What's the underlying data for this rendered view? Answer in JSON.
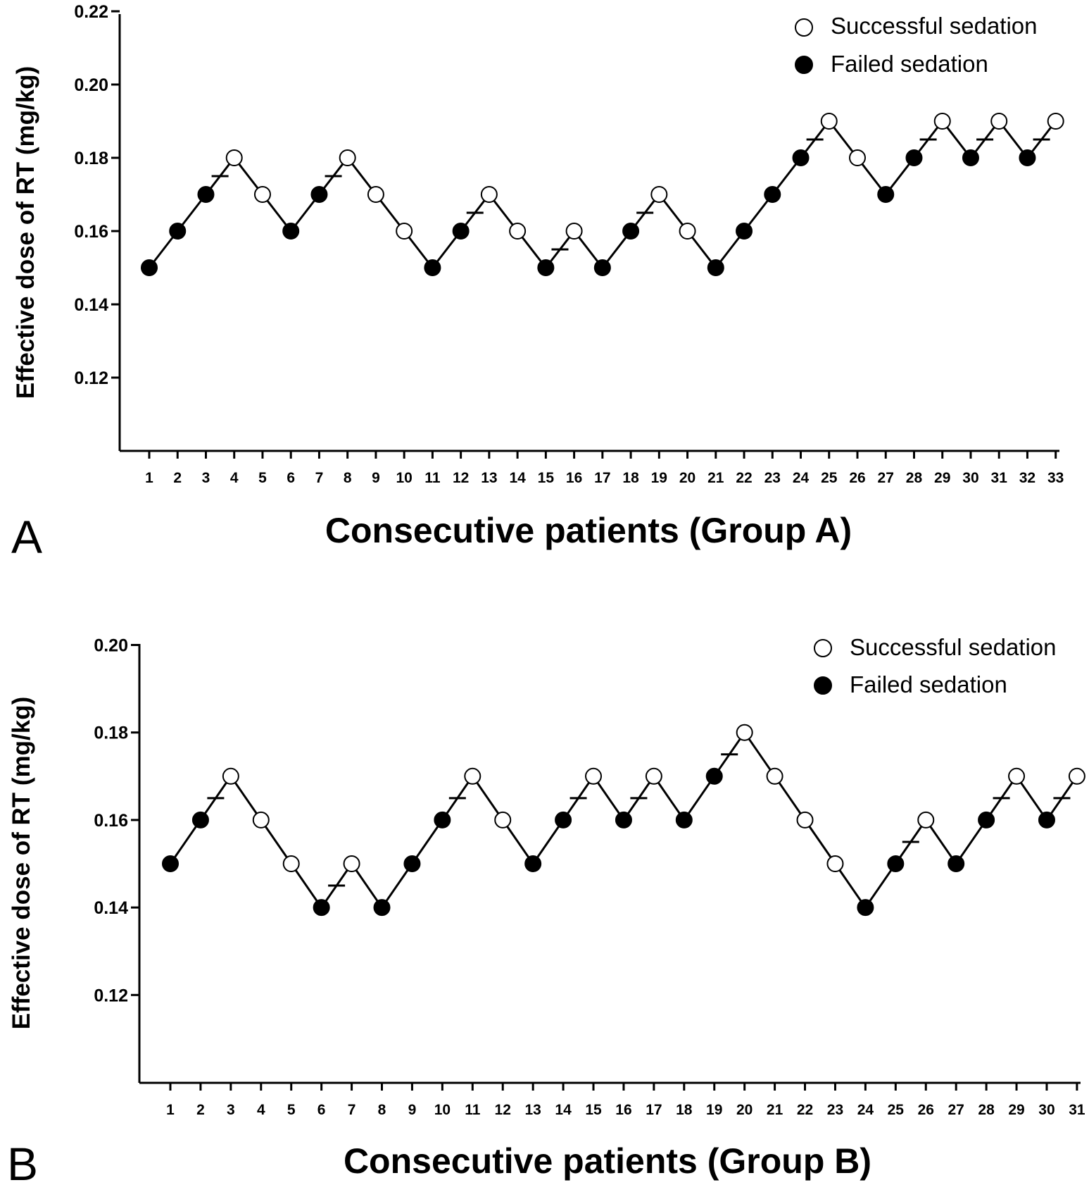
{
  "legend": {
    "success_label": "Successful sedation",
    "failure_label": "Failed sedation"
  },
  "colors": {
    "success_fill": "#ffffff",
    "failure_fill": "#000000",
    "ink": "#000000"
  },
  "chart_data": [
    {
      "panel": "A",
      "type": "scatter",
      "title": "",
      "xlabel": "Consecutive patients (Group A)",
      "ylabel": "Effective dose of RT (mg/kg)",
      "ylim": [
        0.1,
        0.22
      ],
      "yticks": [
        0.12,
        0.14,
        0.16,
        0.18,
        0.2,
        0.22
      ],
      "ytick_labels": [
        "0.12",
        "0.14",
        "0.16",
        "0.18",
        "0.20",
        "0.22"
      ],
      "x": [
        1,
        2,
        3,
        4,
        5,
        6,
        7,
        8,
        9,
        10,
        11,
        12,
        13,
        14,
        15,
        16,
        17,
        18,
        19,
        20,
        21,
        22,
        23,
        24,
        25,
        26,
        27,
        28,
        29,
        30,
        31,
        32,
        33
      ],
      "xtick_labels": [
        "1",
        "2",
        "3",
        "4",
        "5",
        "6",
        "7",
        "8",
        "9",
        "10",
        "11",
        "12",
        "13",
        "14",
        "15",
        "16",
        "17",
        "18",
        "19",
        "20",
        "21",
        "22",
        "23",
        "24",
        "25",
        "26",
        "27",
        "28",
        "29",
        "30",
        "31",
        "32",
        "33"
      ],
      "values": [
        0.15,
        0.16,
        0.17,
        0.18,
        0.17,
        0.16,
        0.17,
        0.18,
        0.17,
        0.16,
        0.15,
        0.16,
        0.17,
        0.16,
        0.15,
        0.16,
        0.15,
        0.16,
        0.17,
        0.16,
        0.15,
        0.16,
        0.17,
        0.18,
        0.19,
        0.18,
        0.17,
        0.18,
        0.19,
        0.18,
        0.19,
        0.18,
        0.19
      ],
      "outcome": [
        "failed",
        "failed",
        "failed",
        "success",
        "success",
        "failed",
        "failed",
        "success",
        "success",
        "success",
        "failed",
        "failed",
        "success",
        "success",
        "failed",
        "success",
        "failed",
        "failed",
        "success",
        "success",
        "failed",
        "failed",
        "failed",
        "failed",
        "success",
        "success",
        "failed",
        "failed",
        "success",
        "failed",
        "success",
        "failed",
        "success"
      ],
      "crossover_midpoints": [
        {
          "x": 3.5,
          "y": 0.175
        },
        {
          "x": 7.5,
          "y": 0.175
        },
        {
          "x": 12.5,
          "y": 0.165
        },
        {
          "x": 15.5,
          "y": 0.155
        },
        {
          "x": 18.5,
          "y": 0.165
        },
        {
          "x": 24.5,
          "y": 0.185
        },
        {
          "x": 28.5,
          "y": 0.185
        },
        {
          "x": 30.5,
          "y": 0.185
        },
        {
          "x": 32.5,
          "y": 0.185
        }
      ],
      "legend_position": "top-right"
    },
    {
      "panel": "B",
      "type": "scatter",
      "title": "",
      "xlabel": "Consecutive patients (Group B)",
      "ylabel": "Effective dose of RT (mg/kg)",
      "ylim": [
        0.1,
        0.2
      ],
      "yticks": [
        0.12,
        0.14,
        0.16,
        0.18,
        0.2
      ],
      "ytick_labels": [
        "0.12",
        "0.14",
        "0.16",
        "0.18",
        "0.20"
      ],
      "x": [
        1,
        2,
        3,
        4,
        5,
        6,
        7,
        8,
        9,
        10,
        11,
        12,
        13,
        14,
        15,
        16,
        17,
        18,
        19,
        20,
        21,
        22,
        23,
        24,
        25,
        26,
        27,
        28,
        29,
        30,
        31
      ],
      "xtick_labels": [
        "1",
        "2",
        "3",
        "4",
        "5",
        "6",
        "7",
        "8",
        "9",
        "10",
        "11",
        "12",
        "13",
        "14",
        "15",
        "16",
        "17",
        "18",
        "19",
        "20",
        "21",
        "22",
        "23",
        "24",
        "25",
        "26",
        "27",
        "28",
        "29",
        "30",
        "31"
      ],
      "values": [
        0.15,
        0.16,
        0.17,
        0.16,
        0.15,
        0.14,
        0.15,
        0.14,
        0.15,
        0.16,
        0.17,
        0.16,
        0.15,
        0.16,
        0.17,
        0.16,
        0.17,
        0.16,
        0.17,
        0.18,
        0.17,
        0.16,
        0.15,
        0.14,
        0.15,
        0.16,
        0.15,
        0.16,
        0.17,
        0.16,
        0.17
      ],
      "outcome": [
        "failed",
        "failed",
        "success",
        "success",
        "success",
        "failed",
        "success",
        "failed",
        "failed",
        "failed",
        "success",
        "success",
        "failed",
        "failed",
        "success",
        "failed",
        "success",
        "failed",
        "failed",
        "success",
        "success",
        "success",
        "success",
        "failed",
        "failed",
        "success",
        "failed",
        "failed",
        "success",
        "failed",
        "success"
      ],
      "crossover_midpoints": [
        {
          "x": 2.5,
          "y": 0.165
        },
        {
          "x": 6.5,
          "y": 0.145
        },
        {
          "x": 10.5,
          "y": 0.165
        },
        {
          "x": 14.5,
          "y": 0.165
        },
        {
          "x": 16.5,
          "y": 0.165
        },
        {
          "x": 19.5,
          "y": 0.175
        },
        {
          "x": 25.5,
          "y": 0.155
        },
        {
          "x": 28.5,
          "y": 0.165
        },
        {
          "x": 30.5,
          "y": 0.165
        }
      ],
      "legend_position": "top-right"
    }
  ]
}
